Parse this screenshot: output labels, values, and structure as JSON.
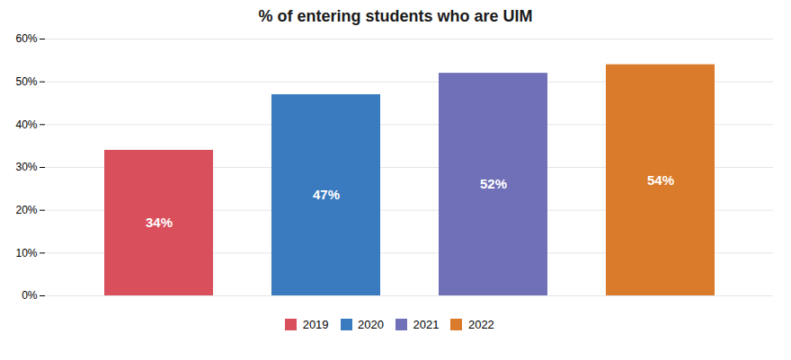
{
  "chart_data": {
    "type": "bar",
    "title": "% of entering students who are UIM",
    "categories": [
      "2019",
      "2020",
      "2021",
      "2022"
    ],
    "values": [
      34,
      47,
      52,
      54
    ],
    "value_labels": [
      "34%",
      "47%",
      "52%",
      "54%"
    ],
    "colors": [
      "#d94f5c",
      "#3a7abf",
      "#7070b8",
      "#d97b2a"
    ],
    "ylim": [
      0,
      60
    ],
    "yticks": [
      {
        "value": 0,
        "label": "0%"
      },
      {
        "value": 10,
        "label": "10%"
      },
      {
        "value": 20,
        "label": "20%"
      },
      {
        "value": 30,
        "label": "30%"
      },
      {
        "value": 40,
        "label": "40%"
      },
      {
        "value": 50,
        "label": "50%"
      },
      {
        "value": 60,
        "label": "60%"
      }
    ],
    "grid": true,
    "data_labels": true,
    "tick_labels": "y",
    "legend": "bottom"
  }
}
